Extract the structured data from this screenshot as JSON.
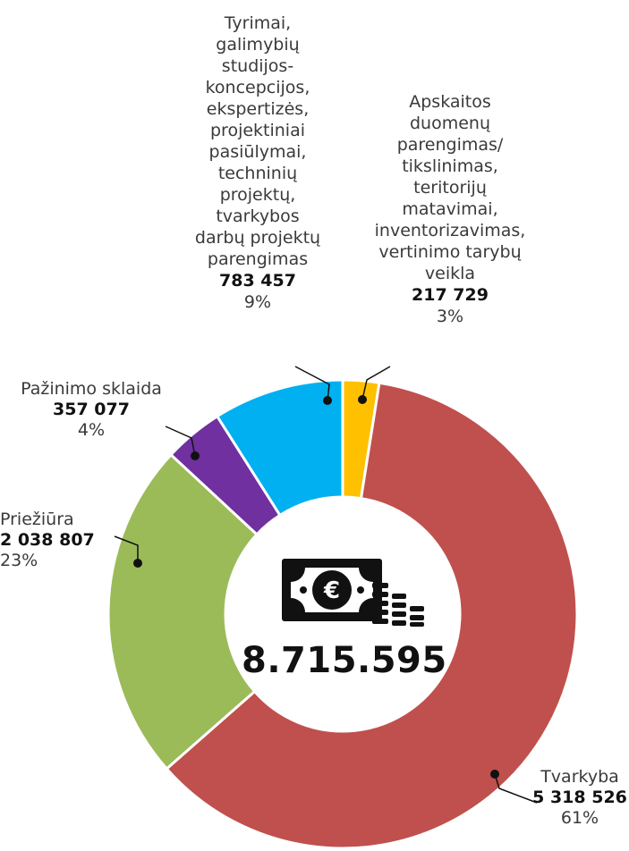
{
  "chart_data": {
    "type": "donut",
    "total_label": "8.715.595",
    "center_icon": "money-coins-icon",
    "segments": [
      {
        "name": "Tvarkyba",
        "value_label": "5 318 526",
        "value": 5318526,
        "percent_label": "61%",
        "color": "#c0504d"
      },
      {
        "name": "Priežiūra",
        "value_label": "2 038 807",
        "value": 2038807,
        "percent_label": "23%",
        "color": "#9bbb59"
      },
      {
        "name": "Pažinimo sklaida",
        "value_label": "357 077",
        "value": 357077,
        "percent_label": "4%",
        "color": "#7030a0"
      },
      {
        "name": "Tyrimai,\ngalimybių\nstudijos-\nkoncepcijos,\nekspertizės,\nprojektiniai\npasiūlymai,\ntechninių\nprojektų,\ntvarkybos\ndarbų projektų\nparengimas",
        "value_label": "783 457",
        "value": 783457,
        "percent_label": "9%",
        "color": "#00b0f0"
      },
      {
        "name": "Apskaitos\nduomenų\nparengimas/\ntikslinimas,\nteritorijų\nmatavimai,\ninventorizavimas,\nvertinimo tarybų\nveikla",
        "value_label": "217 729",
        "value": 217729,
        "percent_label": "3%",
        "color": "#ffc000"
      }
    ]
  }
}
